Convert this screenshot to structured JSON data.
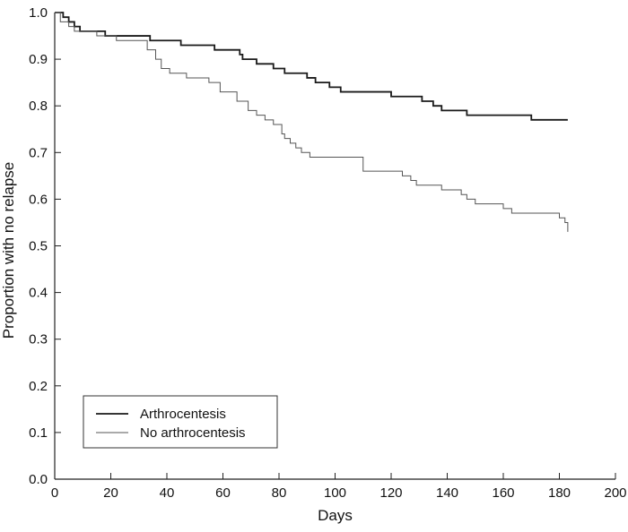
{
  "chart_data": {
    "type": "line",
    "step": true,
    "title": "",
    "xlabel": "Days",
    "ylabel": "Proportion with no relapse",
    "xlim": [
      0,
      200
    ],
    "ylim": [
      0,
      1.0
    ],
    "xticks": [
      0,
      20,
      40,
      60,
      80,
      100,
      120,
      140,
      160,
      180,
      200
    ],
    "yticks": [
      0,
      0.1,
      0.2,
      0.3,
      0.4,
      0.5,
      0.6,
      0.7,
      0.8,
      0.9,
      1.0
    ],
    "xtick_labels": [
      "0",
      "20",
      "40",
      "60",
      "80",
      "100",
      "120",
      "140",
      "160",
      "180",
      "200"
    ],
    "ytick_labels": [
      "0.0",
      "0.1",
      "0.2",
      "0.3",
      "0.4",
      "0.5",
      "0.6",
      "0.7",
      "0.8",
      "0.9",
      "1.0"
    ],
    "grid": false,
    "legend_position": "bottom-left",
    "series": [
      {
        "name": "Arthrocentesis",
        "color": "#1a1a1a",
        "x": [
          0,
          3,
          5,
          7,
          9,
          18,
          34,
          45,
          57,
          66,
          67,
          72,
          78,
          82,
          90,
          93,
          98,
          102,
          120,
          131,
          135,
          138,
          140,
          147,
          170,
          183
        ],
        "y": [
          1.0,
          0.99,
          0.98,
          0.97,
          0.96,
          0.95,
          0.94,
          0.93,
          0.92,
          0.91,
          0.9,
          0.89,
          0.88,
          0.87,
          0.86,
          0.85,
          0.84,
          0.83,
          0.82,
          0.81,
          0.8,
          0.79,
          0.79,
          0.78,
          0.77,
          0.77
        ]
      },
      {
        "name": "No arthrocentesis",
        "color": "#555555",
        "x": [
          0,
          2,
          5,
          7,
          15,
          22,
          33,
          36,
          38,
          41,
          47,
          55,
          59,
          65,
          69,
          72,
          75,
          78,
          81,
          82,
          84,
          86,
          88,
          91,
          110,
          124,
          127,
          129,
          138,
          145,
          147,
          150,
          160,
          163,
          180,
          182,
          183
        ],
        "y": [
          1.0,
          0.98,
          0.97,
          0.96,
          0.95,
          0.94,
          0.92,
          0.9,
          0.88,
          0.87,
          0.86,
          0.85,
          0.83,
          0.81,
          0.79,
          0.78,
          0.77,
          0.76,
          0.74,
          0.73,
          0.72,
          0.71,
          0.7,
          0.69,
          0.66,
          0.65,
          0.64,
          0.63,
          0.62,
          0.61,
          0.6,
          0.59,
          0.58,
          0.57,
          0.56,
          0.55,
          0.53
        ]
      }
    ]
  }
}
